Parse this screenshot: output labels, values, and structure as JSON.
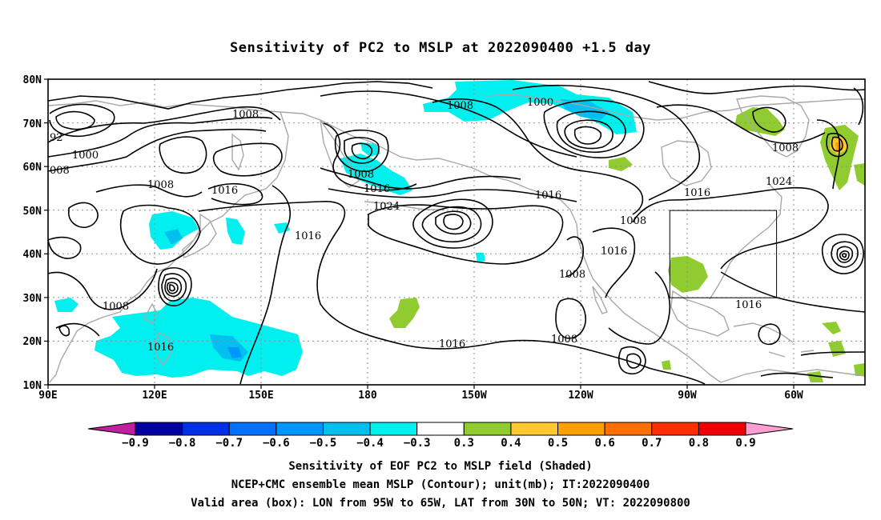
{
  "title": "Sensitivity of PC2 to MSLP at 2022090400 +1.5 day",
  "map": {
    "lat_labels": [
      "80N",
      "70N",
      "60N",
      "50N",
      "40N",
      "30N",
      "20N",
      "10N"
    ],
    "lon_labels": [
      "90E",
      "120E",
      "150E",
      "180",
      "150W",
      "120W",
      "90W",
      "60W"
    ],
    "valid_box": {
      "lon_range": "95W to 65W",
      "lat_range": "30N to 50N"
    },
    "contour_labels": [
      "1008",
      "1000",
      "92",
      "1000",
      "008",
      "1008",
      "1016",
      "1008",
      "1016",
      "1024",
      "1016",
      "1016",
      "1016",
      "1008",
      "1016",
      "1008",
      "1016",
      "1024",
      "1008",
      "1008",
      "1016",
      "1008",
      "1008",
      "1016"
    ]
  },
  "colorbar": {
    "labels": [
      "-0.9",
      "-0.8",
      "-0.7",
      "-0.6",
      "-0.5",
      "-0.4",
      "-0.3",
      "0.3",
      "0.4",
      "0.5",
      "0.6",
      "0.7",
      "0.8",
      "0.9"
    ],
    "colors": [
      "#0000a0",
      "#0030e8",
      "#0070ff",
      "#0096ff",
      "#00c0f0",
      "#00f0f0",
      "#ffffff",
      "#90cc30",
      "#ffc830",
      "#ffa000",
      "#ff7000",
      "#ff3000",
      "#f00000"
    ],
    "low_arrow_color": "#c020a0",
    "high_arrow_color": "#ff9ed0"
  },
  "captions": [
    "Sensitivity of EOF PC2 to MSLP field (Shaded)",
    "NCEP+CMC ensemble mean MSLP (Contour); unit(mb); IT:2022090400",
    "Valid area (box): LON from 95W to 65W, LAT from 30N to 50N; VT: 2022090800"
  ]
}
